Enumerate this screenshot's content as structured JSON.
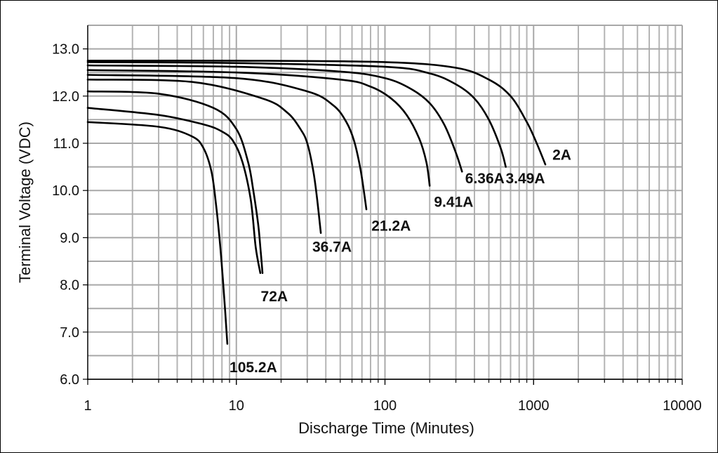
{
  "chart_data": {
    "type": "line",
    "title": "",
    "xlabel": "Discharge Time (Minutes)",
    "ylabel": "Terminal Voltage (VDC)",
    "x_scale": "log",
    "xlim": [
      1,
      10000
    ],
    "ylim": [
      6.0,
      13.5
    ],
    "grid": true,
    "legend": "none",
    "x_ticks": [
      "1",
      "10",
      "100",
      "1000",
      "10000"
    ],
    "y_ticks": [
      "6.0",
      "7.0",
      "8.0",
      "9.0",
      "10.0",
      "11.0",
      "12.0",
      "13.0"
    ],
    "series": [
      {
        "name": "2A",
        "x": [
          1,
          10,
          100,
          300,
          500,
          700,
          900,
          1050,
          1200
        ],
        "y": [
          12.75,
          12.75,
          12.72,
          12.6,
          12.35,
          12.0,
          11.45,
          11.0,
          10.55
        ]
      },
      {
        "name": "3.49A",
        "x": [
          1,
          10,
          100,
          200,
          300,
          400,
          500,
          600,
          650
        ],
        "y": [
          12.72,
          12.7,
          12.62,
          12.48,
          12.25,
          11.95,
          11.5,
          10.9,
          10.5
        ]
      },
      {
        "name": "6.36A",
        "x": [
          1,
          10,
          50,
          100,
          150,
          200,
          250,
          300,
          330
        ],
        "y": [
          12.65,
          12.62,
          12.52,
          12.38,
          12.15,
          11.85,
          11.4,
          10.8,
          10.4
        ]
      },
      {
        "name": "9.41A",
        "x": [
          1,
          10,
          50,
          80,
          110,
          140,
          170,
          190,
          200
        ],
        "y": [
          12.55,
          12.5,
          12.35,
          12.2,
          11.95,
          11.6,
          11.1,
          10.6,
          10.1
        ]
      },
      {
        "name": "21.2A",
        "x": [
          1,
          10,
          30,
          45,
          55,
          62,
          68,
          72,
          75
        ],
        "y": [
          12.45,
          12.38,
          12.1,
          11.8,
          11.45,
          11.05,
          10.5,
          10.0,
          9.6
        ]
      },
      {
        "name": "36.7A",
        "x": [
          1,
          5,
          15,
          22,
          27,
          30,
          33,
          35,
          37
        ],
        "y": [
          12.35,
          12.3,
          11.95,
          11.65,
          11.3,
          11.0,
          10.4,
          9.8,
          9.1
        ]
      },
      {
        "name": "72A",
        "x": [
          1,
          3,
          7,
          10,
          12,
          13,
          14,
          14.5,
          15
        ],
        "y": [
          12.1,
          12.05,
          11.75,
          11.3,
          10.6,
          10.0,
          9.3,
          8.8,
          8.25
        ]
      },
      {
        "name": "",
        "x": [
          1,
          3,
          6,
          8,
          9.5,
          11,
          12.5,
          13.5,
          14.5
        ],
        "y": [
          11.75,
          11.6,
          11.4,
          11.25,
          11.05,
          10.6,
          9.8,
          8.8,
          8.25
        ]
      },
      {
        "name": "105.2A",
        "x": [
          1,
          3,
          5,
          6,
          6.8,
          7.3,
          7.8,
          8.3,
          8.7
        ],
        "y": [
          11.45,
          11.35,
          11.15,
          10.9,
          10.4,
          9.7,
          8.8,
          7.7,
          6.75
        ]
      }
    ],
    "annotations": [
      {
        "text": "2A",
        "x": 1550,
        "y": 10.65
      },
      {
        "text": "3.49A",
        "x": 880,
        "y": 10.15
      },
      {
        "text": "6.36A",
        "x": 470,
        "y": 10.15
      },
      {
        "text": "9.41A",
        "x": 290,
        "y": 9.65
      },
      {
        "text": "21.2A",
        "x": 110,
        "y": 9.15
      },
      {
        "text": "36.7A",
        "x": 44,
        "y": 8.7
      },
      {
        "text": "72A",
        "x": 18,
        "y": 7.65
      },
      {
        "text": "105.2A",
        "x": 13,
        "y": 6.15
      }
    ]
  }
}
